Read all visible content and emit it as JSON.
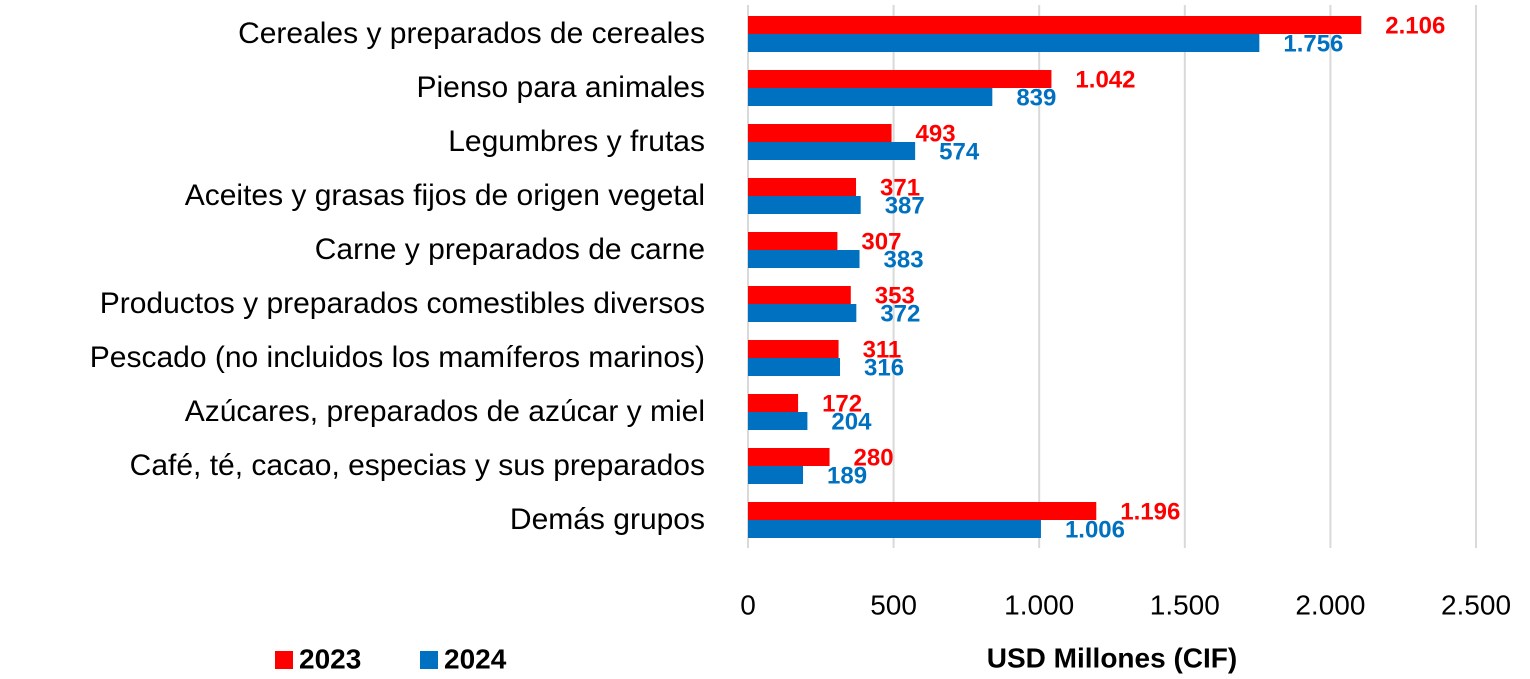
{
  "chart_data": {
    "type": "barh",
    "categories": [
      "Cereales y preparados de cereales",
      "Pienso para animales",
      "Legumbres y frutas",
      "Aceites y grasas fijos de origen vegetal",
      "Carne y preparados de carne",
      "Productos y preparados comestibles diversos",
      "Pescado (no incluidos los mamíferos marinos)",
      "Azúcares, preparados de azúcar y miel",
      "Café, té, cacao, especias y sus preparados",
      "Demás grupos"
    ],
    "series": [
      {
        "name": "2023",
        "color": "#ff0000",
        "values": [
          2106,
          1042,
          493,
          371,
          307,
          353,
          311,
          172,
          280,
          1196
        ],
        "value_labels": [
          "2.106",
          "1.042",
          "493",
          "371",
          "307",
          "353",
          "311",
          "172",
          "280",
          "1.196"
        ]
      },
      {
        "name": "2024",
        "color": "#0070c0",
        "values": [
          1756,
          839,
          574,
          387,
          383,
          372,
          316,
          204,
          189,
          1006
        ],
        "value_labels": [
          "1.756",
          "839",
          "574",
          "387",
          "383",
          "372",
          "316",
          "204",
          "189",
          "1.006"
        ]
      }
    ],
    "xlabel": "USD Millones (CIF)",
    "xlim": [
      0,
      2500
    ],
    "xticks": [
      0,
      500,
      {
        "value": 1000,
        "label": "1.000"
      },
      {
        "value": 1500,
        "label": "1.500"
      },
      {
        "value": 2000,
        "label": "2.000"
      },
      {
        "value": 2500,
        "label": "2.500"
      }
    ],
    "grid": true,
    "legend": "bottom-left"
  }
}
